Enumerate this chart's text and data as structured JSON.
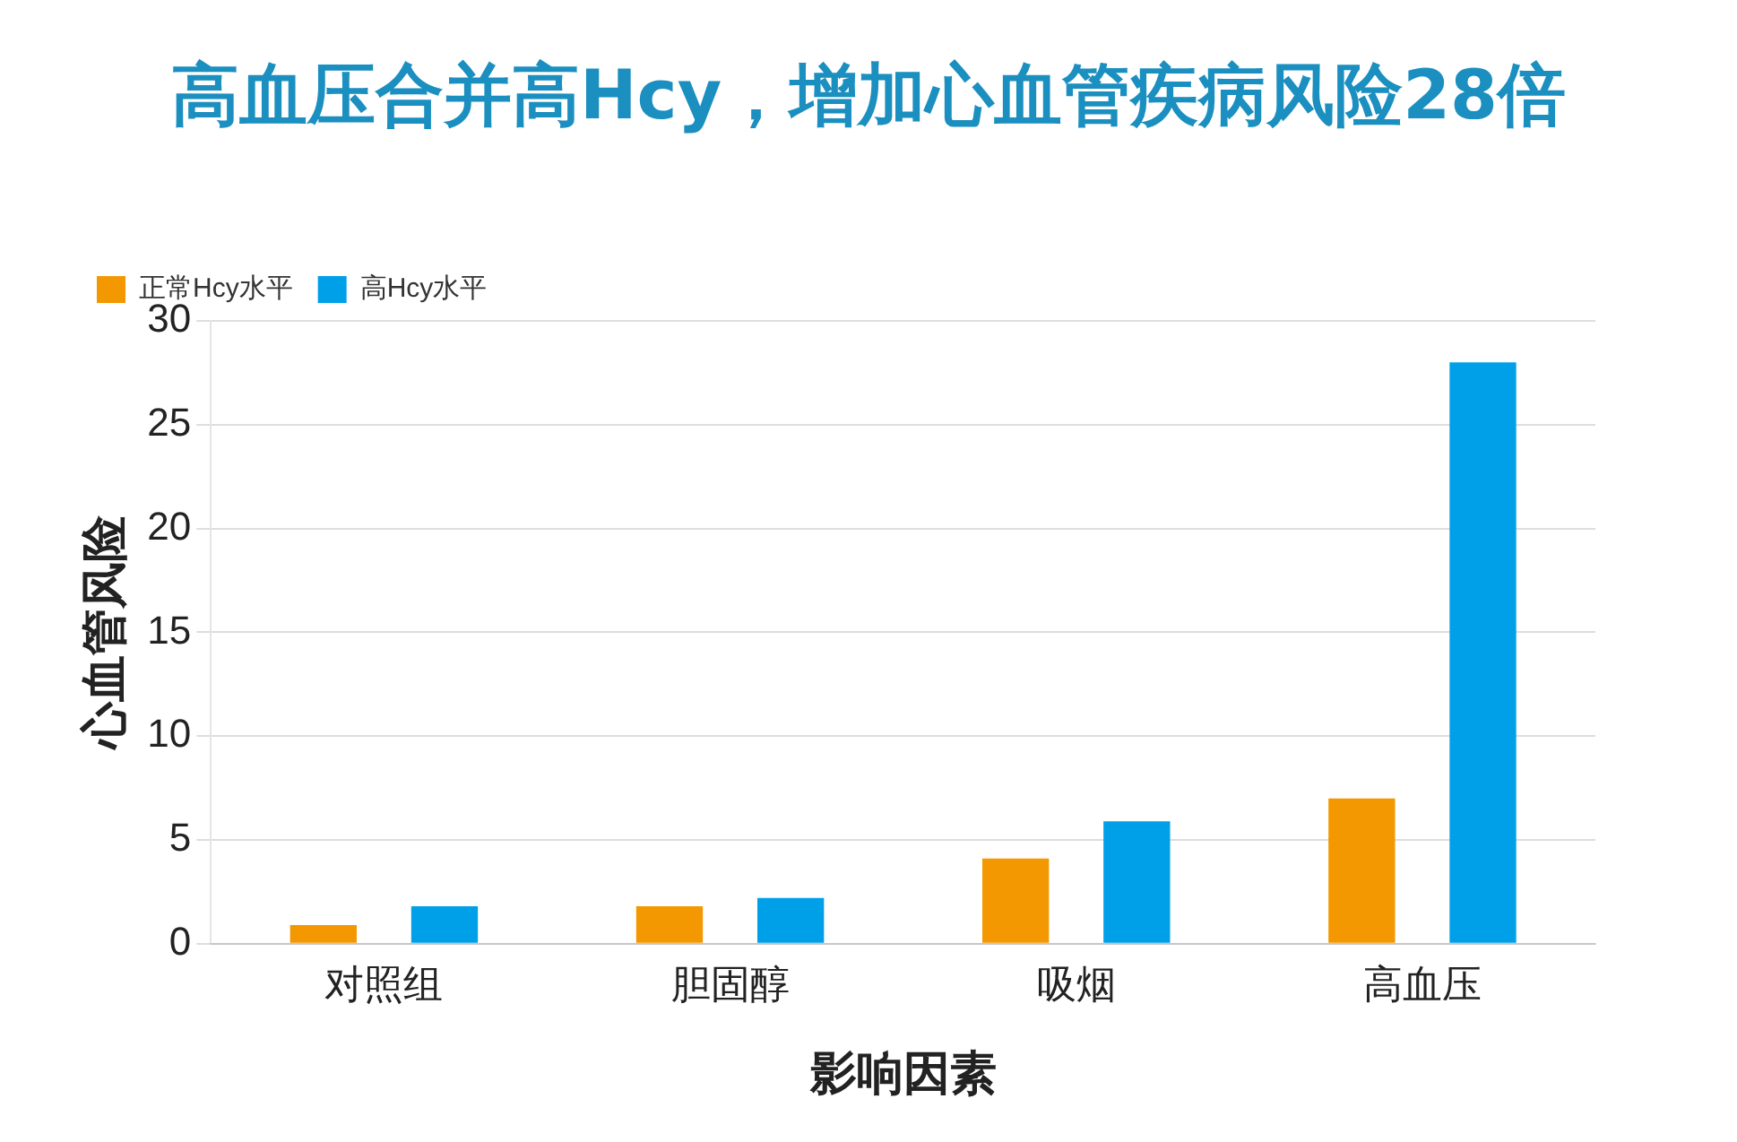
{
  "chart_data": {
    "type": "bar",
    "title": "高血压合并高Hcy，增加心血管疾病风险28倍",
    "xlabel": "影响因素",
    "ylabel": "心血管风险",
    "categories": [
      "对照组",
      "胆固醇",
      "吸烟",
      "高血压"
    ],
    "series": [
      {
        "name": "正常Hcy水平",
        "color": "#f39800",
        "values": [
          0.9,
          1.8,
          4.1,
          7.0
        ]
      },
      {
        "name": "高Hcy水平",
        "color": "#00a0e9",
        "values": [
          1.8,
          2.2,
          5.9,
          28
        ]
      }
    ],
    "ylim": [
      0,
      30
    ],
    "yticks": [
      0,
      5,
      10,
      15,
      20,
      25,
      30
    ],
    "grid": "y",
    "legend": "top left"
  }
}
